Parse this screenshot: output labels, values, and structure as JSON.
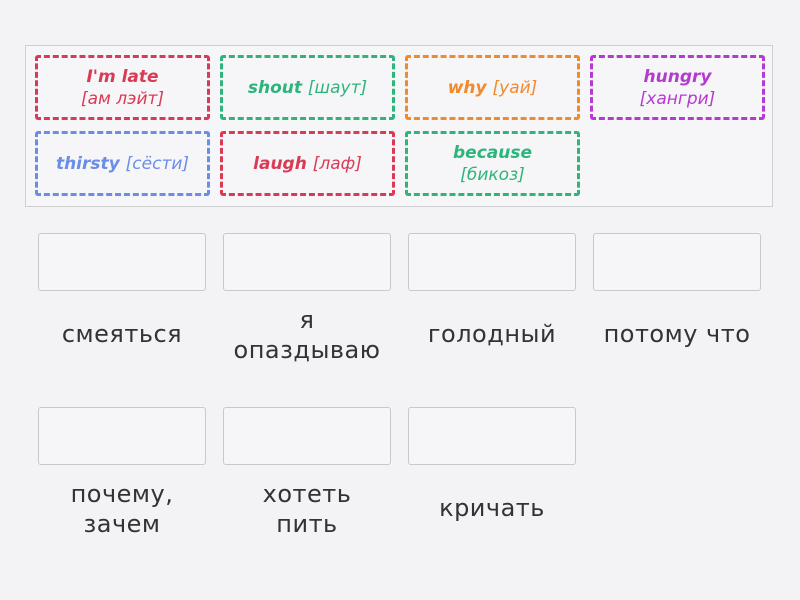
{
  "tiles": [
    {
      "word": "I'm late",
      "tr": "[ам лэйт]",
      "color": "#d93a55"
    },
    {
      "word": "shout",
      "tr": "[шаут]",
      "color": "#2db57b"
    },
    {
      "word": "why",
      "tr": "[уай]",
      "color": "#f2892c"
    },
    {
      "word": "hungry",
      "tr": "[хангри]",
      "color": "#b43ad0"
    },
    {
      "word": "thirsty",
      "tr": "[сёсти]",
      "color": "#6a8de8"
    },
    {
      "word": "laugh",
      "tr": "[лаф]",
      "color": "#d93a55"
    },
    {
      "word": "because",
      "tr": "[бикоз]",
      "color": "#2db57b"
    }
  ],
  "targets": [
    {
      "label1": "смеяться",
      "label2": ""
    },
    {
      "label1": "я",
      "label2": "опаздываю"
    },
    {
      "label1": "голодный",
      "label2": ""
    },
    {
      "label1": "потому что",
      "label2": ""
    },
    {
      "label1": "почему,",
      "label2": "зачем"
    },
    {
      "label1": "хотеть",
      "label2": "пить"
    },
    {
      "label1": "кричать",
      "label2": ""
    }
  ]
}
